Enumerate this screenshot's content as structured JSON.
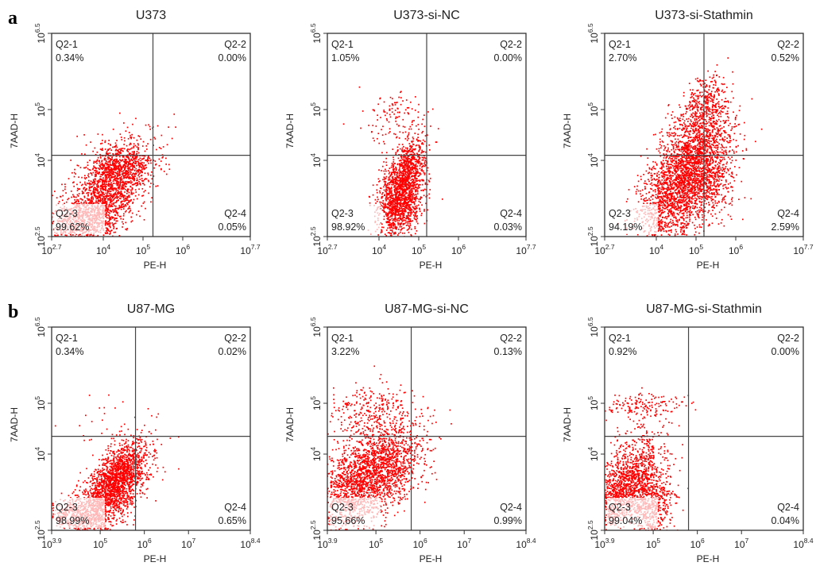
{
  "figure": {
    "rows": [
      {
        "letter": "a",
        "panels": [
          {
            "title": "U373",
            "xlabel": "PE-H",
            "ylabel": "7AAD-H",
            "x_ticks": [
              {
                "base": "10",
                "exp": "2.7"
              },
              {
                "base": "10",
                "exp": "4"
              },
              {
                "base": "10",
                "exp": "5"
              },
              {
                "base": "10",
                "exp": "6"
              },
              {
                "base": "10",
                "exp": "7.7"
              }
            ],
            "y_ticks": [
              {
                "base": "10",
                "exp": "2.5"
              },
              {
                "base": "10",
                "exp": "4"
              },
              {
                "base": "10",
                "exp": "5"
              },
              {
                "base": "10",
                "exp": "6.5"
              }
            ],
            "quadrants": {
              "q1": {
                "name": "Q2-1",
                "pct": "0.34%"
              },
              "q2": {
                "name": "Q2-2",
                "pct": "0.00%"
              },
              "q3": {
                "name": "Q2-3",
                "pct": "99.62%"
              },
              "q4": {
                "name": "Q2-4",
                "pct": "0.05%"
              }
            }
          },
          {
            "title": "U373-si-NC",
            "xlabel": "PE-H",
            "ylabel": "7AAD-H",
            "x_ticks": [
              {
                "base": "10",
                "exp": "2.7"
              },
              {
                "base": "10",
                "exp": "4"
              },
              {
                "base": "10",
                "exp": "5"
              },
              {
                "base": "10",
                "exp": "6"
              },
              {
                "base": "10",
                "exp": "7.7"
              }
            ],
            "y_ticks": [
              {
                "base": "10",
                "exp": "2.5"
              },
              {
                "base": "10",
                "exp": "4"
              },
              {
                "base": "10",
                "exp": "5"
              },
              {
                "base": "10",
                "exp": "6.5"
              }
            ],
            "quadrants": {
              "q1": {
                "name": "Q2-1",
                "pct": "1.05%"
              },
              "q2": {
                "name": "Q2-2",
                "pct": "0.00%"
              },
              "q3": {
                "name": "Q2-3",
                "pct": "98.92%"
              },
              "q4": {
                "name": "Q2-4",
                "pct": "0.03%"
              }
            }
          },
          {
            "title": "U373-si-Stathmin",
            "xlabel": "PE-H",
            "ylabel": "7AAD-H",
            "x_ticks": [
              {
                "base": "10",
                "exp": "2.7"
              },
              {
                "base": "10",
                "exp": "4"
              },
              {
                "base": "10",
                "exp": "5"
              },
              {
                "base": "10",
                "exp": "6"
              },
              {
                "base": "10",
                "exp": "7.7"
              }
            ],
            "y_ticks": [
              {
                "base": "10",
                "exp": "2.5"
              },
              {
                "base": "10",
                "exp": "4"
              },
              {
                "base": "10",
                "exp": "5"
              },
              {
                "base": "10",
                "exp": "6.5"
              }
            ],
            "quadrants": {
              "q1": {
                "name": "Q2-1",
                "pct": "2.70%"
              },
              "q2": {
                "name": "Q2-2",
                "pct": "0.52%"
              },
              "q3": {
                "name": "Q2-3",
                "pct": "94.19%"
              },
              "q4": {
                "name": "Q2-4",
                "pct": "2.59%"
              }
            }
          }
        ]
      },
      {
        "letter": "b",
        "panels": [
          {
            "title": "U87-MG",
            "xlabel": "PE-H",
            "ylabel": "7AAD-H",
            "x_ticks": [
              {
                "base": "10",
                "exp": "3.9"
              },
              {
                "base": "10",
                "exp": "5"
              },
              {
                "base": "10",
                "exp": "6"
              },
              {
                "base": "10",
                "exp": "7"
              },
              {
                "base": "10",
                "exp": "8.4"
              }
            ],
            "y_ticks": [
              {
                "base": "10",
                "exp": "2.5"
              },
              {
                "base": "10",
                "exp": "4"
              },
              {
                "base": "10",
                "exp": "5"
              },
              {
                "base": "10",
                "exp": "6.5"
              }
            ],
            "quadrants": {
              "q1": {
                "name": "Q2-1",
                "pct": "0.34%"
              },
              "q2": {
                "name": "Q2-2",
                "pct": "0.02%"
              },
              "q3": {
                "name": "Q2-3",
                "pct": "98.99%"
              },
              "q4": {
                "name": "Q2-4",
                "pct": "0.65%"
              }
            }
          },
          {
            "title": "U87-MG-si-NC",
            "xlabel": "PE-H",
            "ylabel": "7AAD-H",
            "x_ticks": [
              {
                "base": "10",
                "exp": "3.9"
              },
              {
                "base": "10",
                "exp": "5"
              },
              {
                "base": "10",
                "exp": "6"
              },
              {
                "base": "10",
                "exp": "7"
              },
              {
                "base": "10",
                "exp": "8.4"
              }
            ],
            "y_ticks": [
              {
                "base": "10",
                "exp": "2.5"
              },
              {
                "base": "10",
                "exp": "4"
              },
              {
                "base": "10",
                "exp": "5"
              },
              {
                "base": "10",
                "exp": "6.5"
              }
            ],
            "quadrants": {
              "q1": {
                "name": "Q2-1",
                "pct": "3.22%"
              },
              "q2": {
                "name": "Q2-2",
                "pct": "0.13%"
              },
              "q3": {
                "name": "Q2-3",
                "pct": "95.66%"
              },
              "q4": {
                "name": "Q2-4",
                "pct": "0.99%"
              }
            }
          },
          {
            "title": "U87-MG-si-Stathmin",
            "xlabel": "PE-H",
            "ylabel": "7AAD-H",
            "x_ticks": [
              {
                "base": "10",
                "exp": "3.9"
              },
              {
                "base": "10",
                "exp": "5"
              },
              {
                "base": "10",
                "exp": "6"
              },
              {
                "base": "10",
                "exp": "7"
              },
              {
                "base": "10",
                "exp": "8.4"
              }
            ],
            "y_ticks": [
              {
                "base": "10",
                "exp": "2.5"
              },
              {
                "base": "10",
                "exp": "4"
              },
              {
                "base": "10",
                "exp": "5"
              },
              {
                "base": "10",
                "exp": "6.5"
              }
            ],
            "quadrants": {
              "q1": {
                "name": "Q2-1",
                "pct": "0.92%"
              },
              "q2": {
                "name": "Q2-2",
                "pct": "0.00%"
              },
              "q3": {
                "name": "Q2-3",
                "pct": "99.04%"
              },
              "q4": {
                "name": "Q2-4",
                "pct": "0.04%"
              }
            }
          }
        ]
      }
    ]
  },
  "chart_data": [
    {
      "type": "scatter",
      "title": "U373",
      "xlabel": "PE-H",
      "ylabel": "7AAD-H",
      "x_scale": "log",
      "y_scale": "log",
      "xlim": [
        "10^2.7",
        "10^7.7"
      ],
      "ylim": [
        "10^2.5",
        "10^6.5"
      ],
      "quadrant_gates": {
        "x": "10^5.25",
        "y": "10^4.1"
      },
      "quadrants": [
        {
          "name": "Q2-1",
          "percent": 0.34
        },
        {
          "name": "Q2-2",
          "percent": 0.0
        },
        {
          "name": "Q2-3",
          "percent": 99.62
        },
        {
          "name": "Q2-4",
          "percent": 0.05
        }
      ],
      "point_color": "#ff0000"
    },
    {
      "type": "scatter",
      "title": "U373-si-NC",
      "xlabel": "PE-H",
      "ylabel": "7AAD-H",
      "x_scale": "log",
      "y_scale": "log",
      "xlim": [
        "10^2.7",
        "10^7.7"
      ],
      "ylim": [
        "10^2.5",
        "10^6.5"
      ],
      "quadrant_gates": {
        "x": "10^5.2",
        "y": "10^4.1"
      },
      "quadrants": [
        {
          "name": "Q2-1",
          "percent": 1.05
        },
        {
          "name": "Q2-2",
          "percent": 0.0
        },
        {
          "name": "Q2-3",
          "percent": 98.92
        },
        {
          "name": "Q2-4",
          "percent": 0.03
        }
      ],
      "point_color": "#ff0000"
    },
    {
      "type": "scatter",
      "title": "U373-si-Stathmin",
      "xlabel": "PE-H",
      "ylabel": "7AAD-H",
      "x_scale": "log",
      "y_scale": "log",
      "xlim": [
        "10^2.7",
        "10^7.7"
      ],
      "ylim": [
        "10^2.5",
        "10^6.5"
      ],
      "quadrant_gates": {
        "x": "10^5.2",
        "y": "10^4.1"
      },
      "quadrants": [
        {
          "name": "Q2-1",
          "percent": 2.7
        },
        {
          "name": "Q2-2",
          "percent": 0.52
        },
        {
          "name": "Q2-3",
          "percent": 94.19
        },
        {
          "name": "Q2-4",
          "percent": 2.59
        }
      ],
      "point_color": "#ff0000"
    },
    {
      "type": "scatter",
      "title": "U87-MG",
      "xlabel": "PE-H",
      "ylabel": "7AAD-H",
      "x_scale": "log",
      "y_scale": "log",
      "xlim": [
        "10^3.9",
        "10^8.4"
      ],
      "ylim": [
        "10^2.5",
        "10^6.5"
      ],
      "quadrant_gates": {
        "x": "10^5.8",
        "y": "10^4.35"
      },
      "quadrants": [
        {
          "name": "Q2-1",
          "percent": 0.34
        },
        {
          "name": "Q2-2",
          "percent": 0.02
        },
        {
          "name": "Q2-3",
          "percent": 98.99
        },
        {
          "name": "Q2-4",
          "percent": 0.65
        }
      ],
      "point_color": "#ff0000"
    },
    {
      "type": "scatter",
      "title": "U87-MG-si-NC",
      "xlabel": "PE-H",
      "ylabel": "7AAD-H",
      "x_scale": "log",
      "y_scale": "log",
      "xlim": [
        "10^3.9",
        "10^8.4"
      ],
      "ylim": [
        "10^2.5",
        "10^6.5"
      ],
      "quadrant_gates": {
        "x": "10^5.8",
        "y": "10^4.35"
      },
      "quadrants": [
        {
          "name": "Q2-1",
          "percent": 3.22
        },
        {
          "name": "Q2-2",
          "percent": 0.13
        },
        {
          "name": "Q2-3",
          "percent": 95.66
        },
        {
          "name": "Q2-4",
          "percent": 0.99
        }
      ],
      "point_color": "#ff0000"
    },
    {
      "type": "scatter",
      "title": "U87-MG-si-Stathmin",
      "xlabel": "PE-H",
      "ylabel": "7AAD-H",
      "x_scale": "log",
      "y_scale": "log",
      "xlim": [
        "10^3.9",
        "10^8.4"
      ],
      "ylim": [
        "10^2.5",
        "10^6.5"
      ],
      "quadrant_gates": {
        "x": "10^5.8",
        "y": "10^4.35"
      },
      "quadrants": [
        {
          "name": "Q2-1",
          "percent": 0.92
        },
        {
          "name": "Q2-2",
          "percent": 0.0
        },
        {
          "name": "Q2-3",
          "percent": 99.04
        },
        {
          "name": "Q2-4",
          "percent": 0.04
        }
      ],
      "point_color": "#ff0000"
    }
  ]
}
